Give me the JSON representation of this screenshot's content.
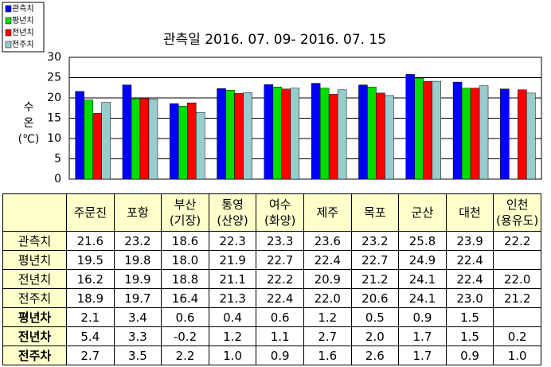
{
  "chart_data": {
    "type": "bar",
    "title": "관측일 2016. 07. 09- 2016. 07. 15",
    "y_label": "수\n온\n(℃)",
    "categories": [
      "주문진",
      "포항",
      "부산\n(기장)",
      "통영\n(산양)",
      "여수\n(화양)",
      "제주",
      "목포",
      "군산",
      "대천",
      "인천\n(용유도)"
    ],
    "series": [
      {
        "name": "관측치",
        "color": "#0000ff",
        "values": [
          21.6,
          23.2,
          18.6,
          22.3,
          23.3,
          23.6,
          23.2,
          25.8,
          23.9,
          22.2
        ],
        "value_labels": [
          "21.6",
          "23.2",
          "18.6",
          "22.3",
          "23.3",
          "23.6",
          "23.2",
          "25.8",
          "23.9",
          "22.2"
        ]
      },
      {
        "name": "평년치",
        "color": "#00dd00",
        "values": [
          19.5,
          19.8,
          18.0,
          21.9,
          22.7,
          22.4,
          22.7,
          24.9,
          22.4,
          null
        ],
        "value_labels": [
          "19.5",
          "19.8",
          "18.0",
          "21.9",
          "22.7",
          "22.4",
          "22.7",
          "24.9",
          "22.4",
          null
        ]
      },
      {
        "name": "전년치",
        "color": "#ff0000",
        "values": [
          16.2,
          19.9,
          18.8,
          21.1,
          22.2,
          20.9,
          21.2,
          24.1,
          22.4,
          22.0
        ],
        "value_labels": [
          "16.2",
          "19.9",
          "18.8",
          "21.1",
          "22.2",
          "20.9",
          "21.2",
          "24.1",
          "22.4",
          "22.0"
        ]
      },
      {
        "name": "전주치",
        "color": "#99cccc",
        "values": [
          18.9,
          19.7,
          16.4,
          21.3,
          22.4,
          22.0,
          20.6,
          24.1,
          23.0,
          21.2
        ],
        "value_labels": [
          "18.9",
          "19.7",
          "16.4",
          "21.3",
          "22.4",
          "22.0",
          "20.6",
          "24.1",
          "23.0",
          "21.2"
        ]
      }
    ],
    "ylim": [
      0,
      30
    ],
    "yticks": [
      0,
      5,
      10,
      15,
      20,
      25,
      30
    ],
    "grid": true
  },
  "table": {
    "rows": [
      {
        "label": "평년차",
        "cells": [
          "2.1",
          "3.4",
          "0.6",
          "0.4",
          "0.6",
          "1.2",
          "0.5",
          "0.9",
          "1.5",
          null
        ]
      },
      {
        "label": "전년차",
        "cells": [
          "5.4",
          "3.3",
          "-0.2",
          "1.2",
          "1.1",
          "2.7",
          "2.0",
          "1.7",
          "1.5",
          "0.2"
        ]
      },
      {
        "label": "전주차",
        "cells": [
          "2.7",
          "3.5",
          "2.2",
          "1.0",
          "0.9",
          "1.6",
          "2.6",
          "1.7",
          "0.9",
          "1.0"
        ]
      }
    ]
  }
}
